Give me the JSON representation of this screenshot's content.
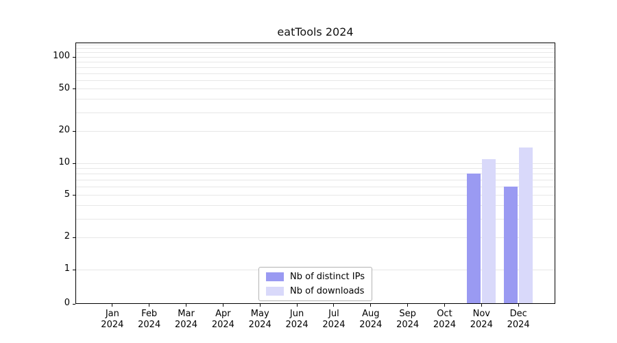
{
  "title": "eatTools 2024",
  "chart_data": {
    "type": "bar",
    "title": "eatTools 2024",
    "yscale": "symlog",
    "grid": "horizontal",
    "legend_position": "lower-center",
    "background": "#ffffff",
    "categories": [
      {
        "month": "Jan",
        "year": "2024"
      },
      {
        "month": "Feb",
        "year": "2024"
      },
      {
        "month": "Mar",
        "year": "2024"
      },
      {
        "month": "Apr",
        "year": "2024"
      },
      {
        "month": "May",
        "year": "2024"
      },
      {
        "month": "Jun",
        "year": "2024"
      },
      {
        "month": "Jul",
        "year": "2024"
      },
      {
        "month": "Aug",
        "year": "2024"
      },
      {
        "month": "Sep",
        "year": "2024"
      },
      {
        "month": "Oct",
        "year": "2024"
      },
      {
        "month": "Nov",
        "year": "2024"
      },
      {
        "month": "Dec",
        "year": "2024"
      }
    ],
    "series": [
      {
        "name": "Nb of distinct IPs",
        "color": "#9a9af2",
        "values": [
          0,
          0,
          0,
          0,
          0,
          0,
          0,
          0,
          0,
          0,
          8,
          6
        ]
      },
      {
        "name": "Nb of downloads",
        "color": "#d9d9fa",
        "values": [
          0,
          0,
          0,
          0,
          0,
          0,
          0,
          0,
          0,
          0,
          11,
          14
        ]
      }
    ],
    "yticks": [
      {
        "label": "0",
        "value": 0
      },
      {
        "label": "1",
        "value": 1
      },
      {
        "label": "2",
        "value": 2
      },
      {
        "label": "5",
        "value": 5
      },
      {
        "label": "10",
        "value": 10
      },
      {
        "label": "20",
        "value": 20
      },
      {
        "label": "50",
        "value": 50
      },
      {
        "label": "100",
        "value": 100
      }
    ],
    "grid_values": [
      1,
      2,
      3,
      4,
      5,
      6,
      7,
      8,
      9,
      10,
      20,
      30,
      40,
      50,
      60,
      70,
      80,
      90,
      100,
      110,
      120,
      130
    ],
    "ylim": [
      0,
      136
    ]
  }
}
